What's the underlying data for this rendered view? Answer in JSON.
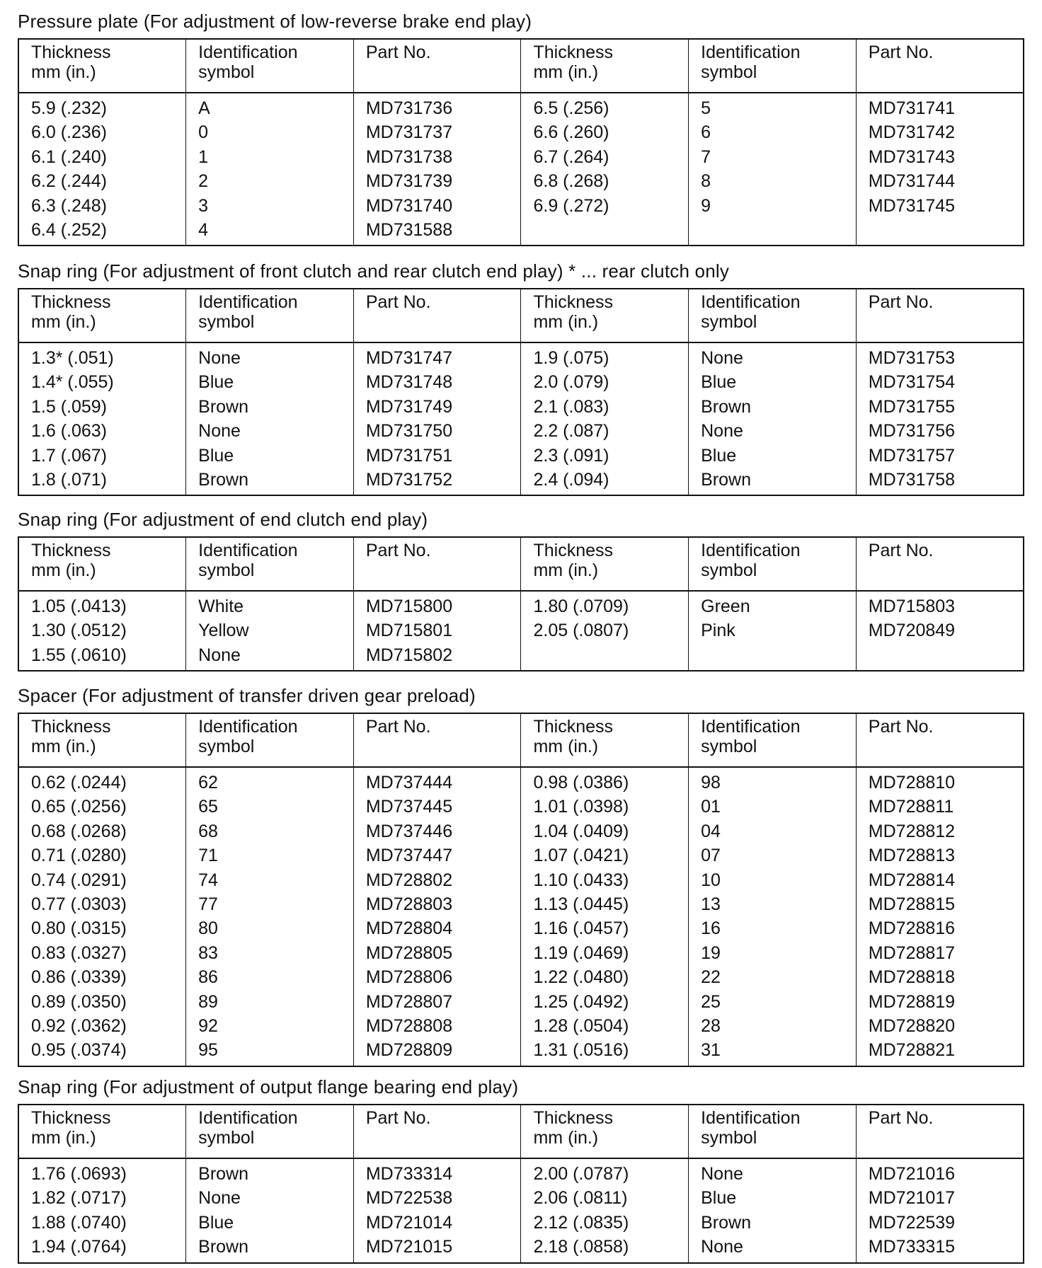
{
  "headers": [
    "Thickness\nmm (in.)",
    "Identification\nsymbol",
    "Part No."
  ],
  "tables": [
    {
      "title": "Pressure plate (For adjustment of low-reverse brake end play)",
      "rows": [
        [
          "5.9 (.232)",
          "A",
          "MD731736",
          "6.5 (.256)",
          "5",
          "MD731741"
        ],
        [
          "6.0 (.236)",
          "0",
          "MD731737",
          "6.6 (.260)",
          "6",
          "MD731742"
        ],
        [
          "6.1 (.240)",
          "1",
          "MD731738",
          "6.7 (.264)",
          "7",
          "MD731743"
        ],
        [
          "6.2 (.244)",
          "2",
          "MD731739",
          "6.8 (.268)",
          "8",
          "MD731744"
        ],
        [
          "6.3 (.248)",
          "3",
          "MD731740",
          "6.9 (.272)",
          "9",
          "MD731745"
        ],
        [
          "6.4 (.252)",
          "4",
          "MD731588",
          "",
          "",
          ""
        ]
      ]
    },
    {
      "title": "Snap ring (For adjustment of front clutch and rear clutch end play) * ... rear clutch only",
      "rows": [
        [
          "1.3* (.051)",
          "None",
          "MD731747",
          "1.9 (.075)",
          "None",
          "MD731753"
        ],
        [
          "1.4* (.055)",
          "Blue",
          "MD731748",
          "2.0 (.079)",
          "Blue",
          "MD731754"
        ],
        [
          "1.5 (.059)",
          "Brown",
          "MD731749",
          "2.1 (.083)",
          "Brown",
          "MD731755"
        ],
        [
          "1.6 (.063)",
          "None",
          "MD731750",
          "2.2 (.087)",
          "None",
          "MD731756"
        ],
        [
          "1.7 (.067)",
          "Blue",
          "MD731751",
          "2.3 (.091)",
          "Blue",
          "MD731757"
        ],
        [
          "1.8 (.071)",
          "Brown",
          "MD731752",
          "2.4 (.094)",
          "Brown",
          "MD731758"
        ]
      ]
    },
    {
      "title": "Snap ring (For adjustment of end clutch end play)",
      "rows": [
        [
          "1.05 (.0413)",
          "White",
          "MD715800",
          "1.80 (.0709)",
          "Green",
          "MD715803"
        ],
        [
          "1.30 (.0512)",
          "Yellow",
          "MD715801",
          "2.05 (.0807)",
          "Pink",
          "MD720849"
        ],
        [
          "1.55 (.0610)",
          "None",
          "MD715802",
          "",
          "",
          ""
        ]
      ]
    },
    {
      "title": "Spacer (For adjustment of transfer driven gear preload)",
      "rows": [
        [
          "0.62 (.0244)",
          "62",
          "MD737444",
          "0.98 (.0386)",
          "98",
          "MD728810"
        ],
        [
          "0.65 (.0256)",
          "65",
          "MD737445",
          "1.01 (.0398)",
          "01",
          "MD728811"
        ],
        [
          "0.68 (.0268)",
          "68",
          "MD737446",
          "1.04 (.0409)",
          "04",
          "MD728812"
        ],
        [
          "0.71 (.0280)",
          "71",
          "MD737447",
          "1.07 (.0421)",
          "07",
          "MD728813"
        ],
        [
          "0.74 (.0291)",
          "74",
          "MD728802",
          "1.10 (.0433)",
          "10",
          "MD728814"
        ],
        [
          "0.77 (.0303)",
          "77",
          "MD728803",
          "1.13 (.0445)",
          "13",
          "MD728815"
        ],
        [
          "0.80 (.0315)",
          "80",
          "MD728804",
          "1.16 (.0457)",
          "16",
          "MD728816"
        ],
        [
          "0.83 (.0327)",
          "83",
          "MD728805",
          "1.19 (.0469)",
          "19",
          "MD728817"
        ],
        [
          "0.86 (.0339)",
          "86",
          "MD728806",
          "1.22 (.0480)",
          "22",
          "MD728818"
        ],
        [
          "0.89 (.0350)",
          "89",
          "MD728807",
          "1.25 (.0492)",
          "25",
          "MD728819"
        ],
        [
          "0.92 (.0362)",
          "92",
          "MD728808",
          "1.28 (.0504)",
          "28",
          "MD728820"
        ],
        [
          "0.95 (.0374)",
          "95",
          "MD728809",
          "1.31 (.0516)",
          "31",
          "MD728821"
        ]
      ]
    },
    {
      "title": "Snap ring (For adjustment of output flange bearing end play)",
      "rows": [
        [
          "1.76 (.0693)",
          "Brown",
          "MD733314",
          "2.00 (.0787)",
          "None",
          "MD721016"
        ],
        [
          "1.82 (.0717)",
          "None",
          "MD722538",
          "2.06 (.0811)",
          "Blue",
          "MD721017"
        ],
        [
          "1.88 (.0740)",
          "Blue",
          "MD721014",
          "2.12 (.0835)",
          "Brown",
          "MD722539"
        ],
        [
          "1.94 (.0764)",
          "Brown",
          "MD721015",
          "2.18 (.0858)",
          "None",
          "MD733315"
        ]
      ]
    }
  ]
}
